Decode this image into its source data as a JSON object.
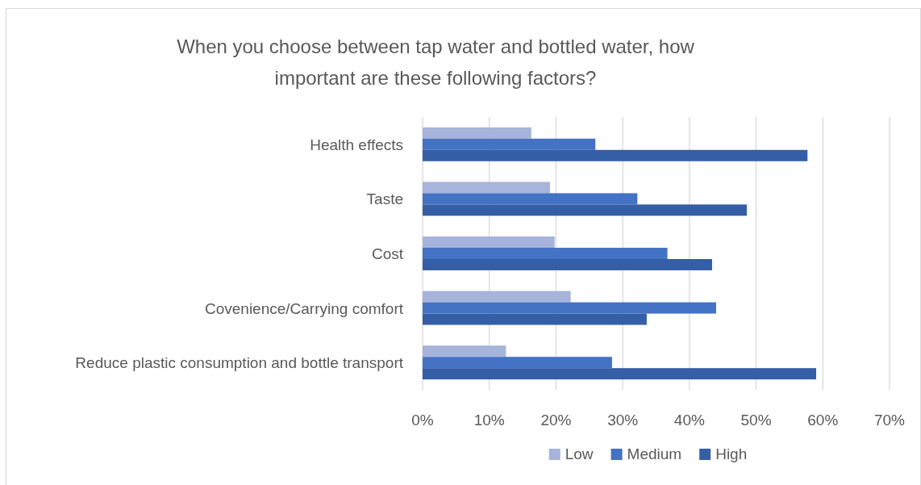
{
  "chart_data": {
    "type": "bar",
    "orientation": "horizontal",
    "title": "When you choose between tap water and bottled water, how important are these following factors?",
    "categories": [
      "Health effects",
      "Taste",
      "Cost",
      "Covenience/Carrying comfort",
      "Reduce plastic consumption and bottle transport"
    ],
    "series": [
      {
        "name": "Low",
        "color": "#a6b4db",
        "values": [
          16.3,
          19.1,
          19.8,
          22.2,
          12.5
        ]
      },
      {
        "name": "Medium",
        "color": "#4472c4",
        "values": [
          25.9,
          32.2,
          36.7,
          44.0,
          28.4
        ]
      },
      {
        "name": "High",
        "color": "#345ea6",
        "values": [
          57.7,
          48.6,
          43.4,
          33.6,
          59.0
        ]
      }
    ],
    "xlim": [
      0,
      70
    ],
    "xticks": [
      {
        "value": 0,
        "label": "0%"
      },
      {
        "value": 10,
        "label": "10%"
      },
      {
        "value": 20,
        "label": "20%"
      },
      {
        "value": 30,
        "label": "30%"
      },
      {
        "value": 40,
        "label": "40%"
      },
      {
        "value": 50,
        "label": "50%"
      },
      {
        "value": 60,
        "label": "60%"
      },
      {
        "value": 70,
        "label": "70%"
      }
    ],
    "grid": "x",
    "legend": "bottom"
  }
}
